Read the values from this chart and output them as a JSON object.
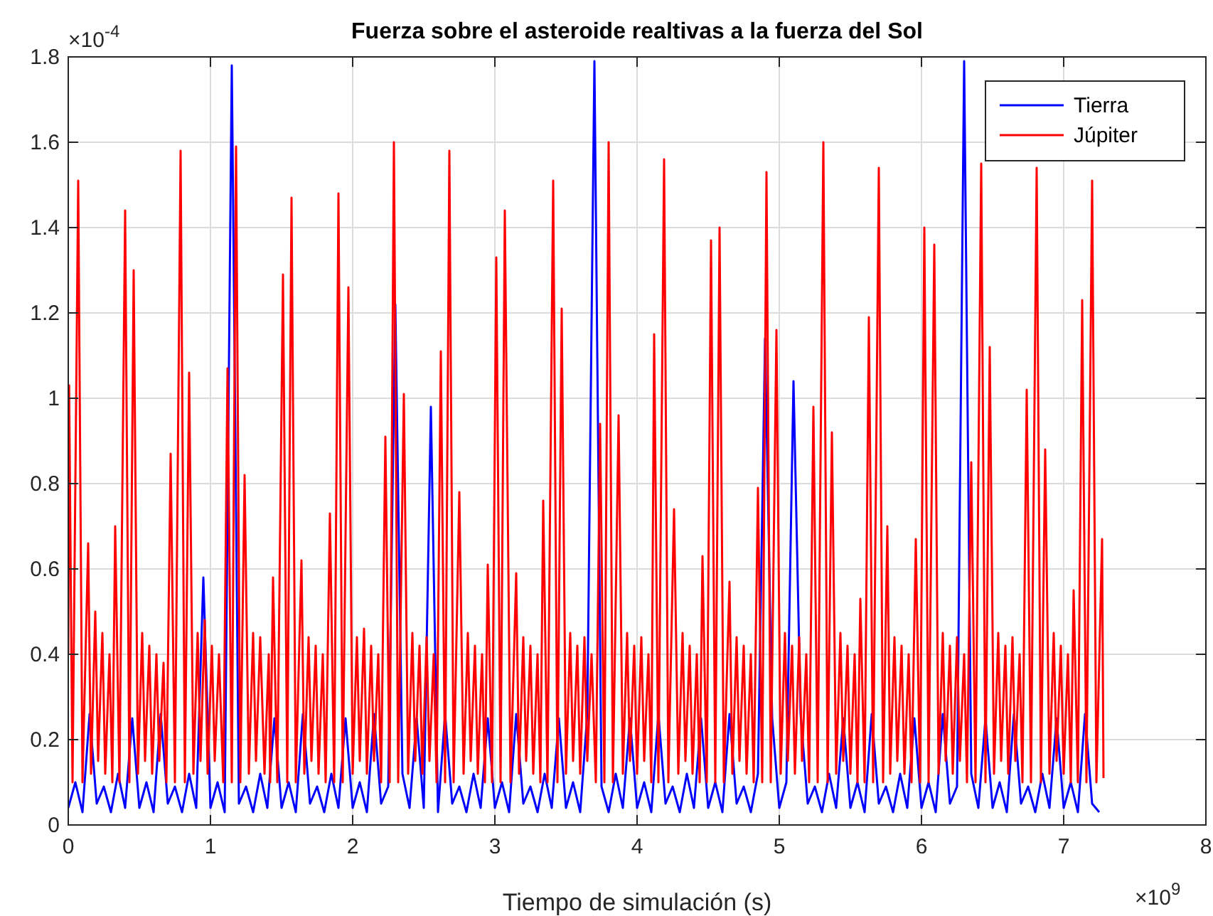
{
  "chart_data": {
    "type": "line",
    "title": "Fuerza sobre el asteroide realtivas a la fuerza del Sol",
    "xlabel": "Tiempo de simulación (s)",
    "annotations": [
      "×10$^{-4}$",
      "×10$^{9}$"
    ],
    "xlim": [
      0,
      8
    ],
    "xticks": [
      0,
      1,
      2,
      3,
      4,
      5,
      6,
      7,
      8
    ],
    "ylim": [
      0,
      1.8
    ],
    "yticks": [
      0,
      0.2,
      0.4,
      0.6,
      0.8,
      1,
      1.2,
      1.4,
      1.6,
      1.8
    ],
    "grid": true,
    "legend": "top right",
    "line_style": "solid",
    "marker": "none",
    "series": [
      {
        "name": "Tierra",
        "color": "#0000ff",
        "x": [
          0,
          0.05,
          0.1,
          0.15,
          0.2,
          0.25,
          0.3,
          0.35,
          0.4,
          0.45,
          0.5,
          0.55,
          0.6,
          0.65,
          0.7,
          0.75,
          0.8,
          0.85,
          0.9,
          0.95,
          1,
          1.05,
          1.1,
          1.15,
          1.2,
          1.25,
          1.3,
          1.35,
          1.4,
          1.45,
          1.5,
          1.55,
          1.6,
          1.65,
          1.7,
          1.75,
          1.8,
          1.85,
          1.9,
          1.95,
          2,
          2.05,
          2.1,
          2.15,
          2.2,
          2.25,
          2.3,
          2.35,
          2.4,
          2.45,
          2.5,
          2.55,
          2.6,
          2.65,
          2.7,
          2.75,
          2.8,
          2.85,
          2.9,
          2.95,
          3,
          3.05,
          3.1,
          3.15,
          3.2,
          3.25,
          3.3,
          3.35,
          3.4,
          3.45,
          3.5,
          3.55,
          3.6,
          3.65,
          3.7,
          3.75,
          3.8,
          3.85,
          3.9,
          3.95,
          4,
          4.05,
          4.1,
          4.15,
          4.2,
          4.25,
          4.3,
          4.35,
          4.4,
          4.45,
          4.5,
          4.55,
          4.6,
          4.65,
          4.7,
          4.75,
          4.8,
          4.85,
          4.9,
          4.95,
          5,
          5.05,
          5.1,
          5.15,
          5.2,
          5.25,
          5.3,
          5.35,
          5.4,
          5.45,
          5.5,
          5.55,
          5.6,
          5.65,
          5.7,
          5.75,
          5.8,
          5.85,
          5.9,
          5.95,
          6,
          6.05,
          6.1,
          6.15,
          6.2,
          6.25,
          6.3,
          6.35,
          6.4,
          6.45,
          6.5,
          6.55,
          6.6,
          6.65,
          6.7,
          6.75,
          6.8,
          6.85,
          6.9,
          6.95,
          7,
          7.05,
          7.1,
          7.15,
          7.2,
          7.25
        ],
        "values": [
          0.04,
          0.1,
          0.03,
          0.26,
          0.05,
          0.09,
          0.03,
          0.12,
          0.04,
          0.25,
          0.04,
          0.1,
          0.03,
          0.26,
          0.05,
          0.09,
          0.03,
          0.12,
          0.04,
          0.58,
          0.04,
          0.1,
          0.03,
          1.78,
          0.05,
          0.09,
          0.03,
          0.12,
          0.04,
          0.25,
          0.04,
          0.1,
          0.03,
          0.26,
          0.05,
          0.09,
          0.03,
          0.12,
          0.04,
          0.25,
          0.04,
          0.1,
          0.03,
          0.26,
          0.05,
          0.09,
          1.22,
          0.12,
          0.04,
          0.25,
          0.04,
          0.98,
          0.03,
          0.26,
          0.05,
          0.09,
          0.03,
          0.12,
          0.04,
          0.25,
          0.04,
          0.1,
          0.03,
          0.26,
          0.05,
          0.09,
          0.03,
          0.12,
          0.04,
          0.25,
          0.04,
          0.1,
          0.03,
          0.26,
          1.79,
          0.09,
          0.03,
          0.12,
          0.04,
          0.25,
          0.04,
          0.1,
          0.03,
          0.26,
          0.05,
          0.09,
          0.03,
          0.12,
          0.04,
          0.25,
          0.04,
          0.1,
          0.03,
          0.26,
          0.05,
          0.09,
          0.03,
          0.12,
          1.14,
          0.25,
          0.04,
          0.1,
          1.04,
          0.26,
          0.05,
          0.09,
          0.03,
          0.12,
          0.04,
          0.25,
          0.04,
          0.1,
          0.03,
          0.26,
          0.05,
          0.09,
          0.03,
          0.12,
          0.04,
          0.25,
          0.04,
          0.1,
          0.03,
          0.26,
          0.05,
          0.09,
          1.79,
          0.12,
          0.04,
          0.25,
          0.04,
          0.1,
          0.03,
          0.26,
          0.05,
          0.09,
          0.03,
          0.12,
          0.04,
          0.25,
          0.04,
          0.1,
          0.03,
          0.26,
          0.05,
          0.03
        ]
      },
      {
        "name": "Júpiter",
        "color": "#ff0000",
        "x": [
          0,
          0.006,
          0.03,
          0.07,
          0.1,
          0.14,
          0.16,
          0.19,
          0.21,
          0.24,
          0.26,
          0.29,
          0.31,
          0.33,
          0.36,
          0.4,
          0.43,
          0.46,
          0.49,
          0.52,
          0.54,
          0.57,
          0.59,
          0.62,
          0.64,
          0.67,
          0.69,
          0.72,
          0.75,
          0.79,
          0.82,
          0.85,
          0.88,
          0.91,
          0.93,
          0.96,
          0.98,
          1.01,
          1.03,
          1.06,
          1.09,
          1.12,
          1.15,
          1.18,
          1.21,
          1.24,
          1.27,
          1.3,
          1.32,
          1.35,
          1.38,
          1.41,
          1.42,
          1.44,
          1.47,
          1.51,
          1.54,
          1.57,
          1.6,
          1.64,
          1.66,
          1.69,
          1.71,
          1.74,
          1.76,
          1.79,
          1.81,
          1.84,
          1.87,
          1.9,
          1.93,
          1.97,
          2,
          2.03,
          2.05,
          2.08,
          2.1,
          2.13,
          2.15,
          2.18,
          2.2,
          2.23,
          2.26,
          2.29,
          2.32,
          2.36,
          2.39,
          2.42,
          2.44,
          2.47,
          2.49,
          2.52,
          2.54,
          2.57,
          2.59,
          2.62,
          2.65,
          2.68,
          2.71,
          2.75,
          2.78,
          2.81,
          2.83,
          2.86,
          2.88,
          2.91,
          2.93,
          2.95,
          2.98,
          3.01,
          3.04,
          3.07,
          3.11,
          3.15,
          3.17,
          3.2,
          3.22,
          3.25,
          3.27,
          3.3,
          3.32,
          3.34,
          3.37,
          3.41,
          3.44,
          3.47,
          3.5,
          3.53,
          3.55,
          3.58,
          3.6,
          3.63,
          3.65,
          3.68,
          3.71,
          3.74,
          3.77,
          3.8,
          3.83,
          3.87,
          3.9,
          3.93,
          3.95,
          3.98,
          4,
          4.03,
          4.05,
          4.08,
          4.1,
          4.12,
          4.15,
          4.19,
          4.22,
          4.26,
          4.29,
          4.32,
          4.34,
          4.37,
          4.39,
          4.42,
          4.44,
          4.46,
          4.49,
          4.52,
          4.55,
          4.58,
          4.61,
          4.65,
          4.67,
          4.7,
          4.72,
          4.75,
          4.77,
          4.8,
          4.82,
          4.85,
          4.88,
          4.91,
          4.94,
          4.98,
          5.01,
          5.04,
          5.06,
          5.09,
          5.11,
          5.14,
          5.16,
          5.19,
          5.21,
          5.24,
          5.27,
          5.31,
          5.34,
          5.37,
          5.4,
          5.43,
          5.45,
          5.48,
          5.5,
          5.53,
          5.55,
          5.57,
          5.6,
          5.63,
          5.66,
          5.7,
          5.73,
          5.76,
          5.78,
          5.81,
          5.83,
          5.86,
          5.88,
          5.91,
          5.93,
          5.96,
          5.99,
          6.02,
          6.05,
          6.09,
          6.12,
          6.15,
          6.17,
          6.2,
          6.22,
          6.25,
          6.27,
          6.3,
          6.32,
          6.35,
          6.38,
          6.42,
          6.45,
          6.48,
          6.51,
          6.54,
          6.56,
          6.59,
          6.61,
          6.64,
          6.66,
          6.69,
          6.71,
          6.74,
          6.77,
          6.81,
          6.84,
          6.87,
          6.9,
          6.93,
          6.95,
          6.98,
          7,
          7.03,
          7.05,
          7.07,
          7.1,
          7.13,
          7.16,
          7.2,
          7.23,
          7.27,
          7.28
        ],
        "values": [
          0.4,
          1.03,
          0.1,
          1.51,
          0.1,
          0.66,
          0.12,
          0.5,
          0.15,
          0.45,
          0.12,
          0.4,
          0.1,
          0.7,
          0.1,
          1.44,
          0.1,
          1.3,
          0.12,
          0.45,
          0.15,
          0.42,
          0.12,
          0.4,
          0.15,
          0.38,
          0.1,
          0.87,
          0.1,
          1.58,
          0.1,
          1.06,
          0.12,
          0.45,
          0.15,
          0.48,
          0.12,
          0.42,
          0.15,
          0.4,
          0.1,
          1.07,
          0.1,
          1.59,
          0.1,
          0.82,
          0.12,
          0.45,
          0.15,
          0.44,
          0.12,
          0.4,
          0.1,
          0.58,
          0.1,
          1.29,
          0.1,
          1.47,
          0.1,
          0.62,
          0.12,
          0.44,
          0.15,
          0.42,
          0.12,
          0.4,
          0.1,
          0.73,
          0.1,
          1.48,
          0.1,
          1.26,
          0.12,
          0.44,
          0.15,
          0.46,
          0.12,
          0.42,
          0.15,
          0.4,
          0.1,
          0.91,
          0.1,
          1.6,
          0.1,
          1.01,
          0.12,
          0.45,
          0.15,
          0.42,
          0.12,
          0.44,
          0.15,
          0.4,
          0.1,
          1.11,
          0.1,
          1.58,
          0.1,
          0.78,
          0.12,
          0.45,
          0.15,
          0.42,
          0.12,
          0.4,
          0.1,
          0.61,
          0.1,
          1.33,
          0.1,
          1.44,
          0.1,
          0.59,
          0.12,
          0.44,
          0.15,
          0.42,
          0.12,
          0.4,
          0.1,
          0.76,
          0.1,
          1.51,
          0.1,
          1.21,
          0.12,
          0.45,
          0.15,
          0.42,
          0.12,
          0.44,
          0.15,
          0.4,
          0.1,
          0.94,
          0.1,
          1.6,
          0.1,
          0.96,
          0.12,
          0.45,
          0.15,
          0.42,
          0.12,
          0.44,
          0.15,
          0.4,
          0.1,
          1.15,
          0.1,
          1.56,
          0.1,
          0.74,
          0.12,
          0.45,
          0.15,
          0.42,
          0.12,
          0.4,
          0.1,
          0.63,
          0.1,
          1.37,
          0.1,
          1.4,
          0.1,
          0.57,
          0.12,
          0.44,
          0.15,
          0.42,
          0.12,
          0.4,
          0.1,
          0.79,
          0.1,
          1.53,
          0.1,
          1.16,
          0.12,
          0.45,
          0.15,
          0.42,
          0.12,
          0.44,
          0.15,
          0.4,
          0.1,
          0.98,
          0.1,
          1.6,
          0.1,
          0.92,
          0.12,
          0.45,
          0.15,
          0.42,
          0.12,
          0.4,
          0.1,
          0.53,
          0.1,
          1.19,
          0.1,
          1.54,
          0.1,
          0.7,
          0.12,
          0.44,
          0.15,
          0.42,
          0.12,
          0.4,
          0.1,
          0.67,
          0.1,
          1.4,
          0.1,
          1.36,
          0.12,
          0.45,
          0.15,
          0.42,
          0.12,
          0.44,
          0.15,
          0.4,
          0.1,
          0.85,
          0.1,
          1.55,
          0.1,
          1.12,
          0.12,
          0.45,
          0.15,
          0.42,
          0.12,
          0.44,
          0.15,
          0.4,
          0.1,
          1.02,
          0.1,
          1.54,
          0.1,
          0.88,
          0.12,
          0.45,
          0.15,
          0.42,
          0.12,
          0.4,
          0.1,
          0.55,
          0.1,
          1.23,
          0.1,
          1.51,
          0.1,
          0.67,
          0.11
        ]
      }
    ]
  }
}
